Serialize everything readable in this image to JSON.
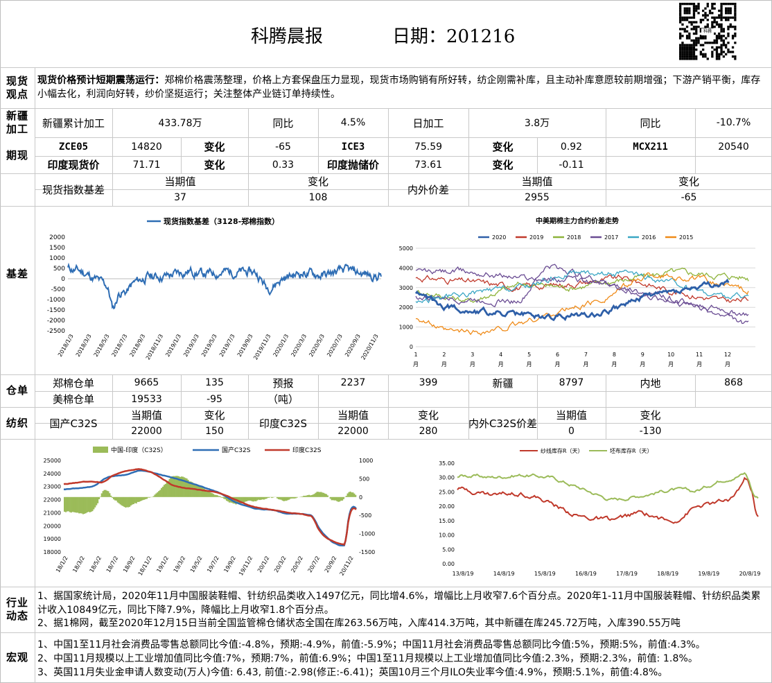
{
  "header": {
    "title": "科腾晨报",
    "date_label": "日期：201216"
  },
  "sections": {
    "spot_view": "现货观点",
    "xinjiang": "新疆加工",
    "futures": "期现",
    "basis": "基差",
    "warehouse": "仓单",
    "spinning": "纺织",
    "industry": "行业动态",
    "macro": "宏观"
  },
  "spot_view": {
    "headline": "现货价格预计短期震荡运行：",
    "body": "郑棉价格震荡整理，价格上方套保盘压力显现，现货市场购销有所好转，纺企刚需补库，且主动补库意愿较前期增强；下游产销平衡，库存小幅去化，利润向好转，纱价坚挺运行；关注整体产业链订单持续性。"
  },
  "xinjiang": {
    "cum_label": "新疆累计加工",
    "cum_value": "433.78万",
    "yoy_label": "同比",
    "yoy_value": "4.5%",
    "daily_label": "日加工",
    "daily_value": "3.8万",
    "daily_yoy_label": "同比",
    "daily_yoy_value": "-10.7%"
  },
  "futures": {
    "row1": {
      "a_label": "ZCE05",
      "a_value": "14820",
      "a_chg_label": "变化",
      "a_chg": "-65",
      "b_label": "ICE3",
      "b_value": "75.59",
      "b_chg_label": "变化",
      "b_chg": "0.92",
      "c_label": "MCX211",
      "c_value": "20540"
    },
    "row2": {
      "a_label": "印度现货价",
      "a_value": "71.71",
      "a_chg_label": "变化",
      "a_chg": "0.33",
      "b_label": "印度抛储价",
      "b_value": "73.61",
      "b_chg_label": "变化",
      "b_chg": "-0.11"
    }
  },
  "basis": {
    "index_label": "现货指数基差",
    "cur_label": "当期值",
    "chg_label": "变化",
    "index_cur": "37",
    "index_chg": "108",
    "spread_label": "内外价差",
    "spread_cur_label": "当期值",
    "spread_chg_label": "变化",
    "spread_cur": "2955",
    "spread_chg": "-65"
  },
  "chart_basis": {
    "title": "现货指数基差（3128-郑棉指数）",
    "yticks": [
      "2000",
      "1500",
      "1000",
      "500",
      "0",
      "-500",
      "-1000",
      "-1500",
      "-2000",
      "-2500"
    ],
    "xticks": [
      "2018/1/3",
      "2018/3/3",
      "2018/5/3",
      "2018/7/3",
      "2018/9/3",
      "2018/11/3",
      "2019/1/3",
      "2019/3/3",
      "2019/5/3",
      "2019/7/3",
      "2019/9/3",
      "2019/11/3",
      "2020/1/3",
      "2020/3/3",
      "2020/5/3",
      "2020/7/3",
      "2020/9/3",
      "2020/11/3"
    ],
    "color": "#2e6db4"
  },
  "chart_spread": {
    "title": "中美期棉主力合约价差走势",
    "legend": [
      {
        "name": "2020",
        "color": "#2e5fa8"
      },
      {
        "name": "2019",
        "color": "#c0392b"
      },
      {
        "name": "2018",
        "color": "#8db33a"
      },
      {
        "name": "2017",
        "color": "#6a4c93"
      },
      {
        "name": "2016",
        "color": "#3aa6c4"
      },
      {
        "name": "2015",
        "color": "#ef8a17"
      }
    ],
    "yticks": [
      "5000",
      "4000",
      "3000",
      "2000",
      "1000",
      "0"
    ],
    "xticks": [
      "1",
      "2",
      "3",
      "4",
      "5",
      "6",
      "7",
      "8",
      "9",
      "10",
      "11",
      "12"
    ],
    "xunit": "月"
  },
  "warehouse": {
    "zc_label": "郑棉仓单",
    "zc_value": "9665",
    "zc_chg": "135",
    "forecast_label": "预报",
    "forecast_unit": "（吨）",
    "forecast_value": "2237",
    "forecast_chg": "399",
    "xj_label": "新疆",
    "xj_value": "8797",
    "inland_label": "内地",
    "inland_value": "868",
    "us_label": "美棉仓单",
    "us_value": "19533",
    "us_chg": "-95"
  },
  "spinning": {
    "dom_label": "国产C32S",
    "cur_label": "当期值",
    "chg_label": "变化",
    "dom_cur": "22000",
    "dom_chg": "150",
    "ind_label": "印度C32S",
    "ind_cur": "22000",
    "ind_chg": "280",
    "spread_label": "内外C32S价差",
    "spread_cur": "0",
    "spread_chg": "-130"
  },
  "chart_yarn": {
    "legend": [
      {
        "name": "中国-印度（C32S）",
        "color": "#9bbb59"
      },
      {
        "name": "国产C32S",
        "color": "#2e6db4"
      },
      {
        "name": "印度C32S",
        "color": "#c0392b"
      }
    ],
    "yticks_left": [
      "25000",
      "24000",
      "23000",
      "22000",
      "21000",
      "20000",
      "19000",
      "18000"
    ],
    "yticks_right": [
      "1000",
      "500",
      "0",
      "-500",
      "-1000",
      "-1500"
    ],
    "xticks": [
      "18/1/2",
      "18/3/2",
      "18/5/2",
      "18/7/2",
      "18/9/2",
      "18/11/2",
      "19/1/2",
      "19/3/2",
      "19/5/2",
      "19/7/2",
      "19/9/2",
      "19/11/2",
      "20/1/2",
      "20/3/2",
      "20/5/2",
      "20/7/2",
      "20/9/2",
      "20/11/2"
    ]
  },
  "chart_stock": {
    "legend": [
      {
        "name": "纱线库存R（天）",
        "color": "#c0392b"
      },
      {
        "name": "坯布库存R（天）",
        "color": "#9bbb59"
      }
    ],
    "yticks": [
      "35.00",
      "30.00",
      "25.00",
      "20.00",
      "15.00",
      "10.00",
      "5.00",
      "0.00"
    ],
    "xticks": [
      "13/8/19",
      "14/8/19",
      "15/8/19",
      "16/8/19",
      "17/8/19",
      "18/8/19",
      "19/8/19",
      "20/8/19"
    ]
  },
  "industry": {
    "line1": "1、据国家统计局，2020年11月中国服装鞋帽、针纺织品类收入1497亿元，同比增4.6%，增幅比上月收窄7.6个百分点。2020年1-11月中国服装鞋帽、针纺织品类累计收入10849亿元，同比下降7.9%，降幅比上月收窄1.8个百分点。",
    "line2": "2、据1棉网，截至2020年12月15日当前全国监管棉仓储状态全国在库263.56万吨，入库414.3万吨，其中新疆在库245.72万吨，入库390.55万吨"
  },
  "macro": {
    "line1": "1、中国1至11月社会消费品零售总额同比今值:-4.8%，预期:-4.9%，前值:-5.9%；中国11月社会消费品零售总额同比今值:5%，预期:5%，前值:4.3%。",
    "line2": "2、中国11月规模以上工业增加值同比今值:7%，预期:7%，前值:6.9%；中国1至11月规模以上工业增加值同比今值:2.3%，预期:2.3%，前值: 1.8%。",
    "line3": "3、英国11月失业金申请人数变动(万人)今值: 6.43, 前值:-2.98(修正:-6.41)；英国10月三个月ILO失业率今值:4.9%，预期:5.1%，前值:4.8%。"
  },
  "qr": {
    "caption": "科腾"
  }
}
